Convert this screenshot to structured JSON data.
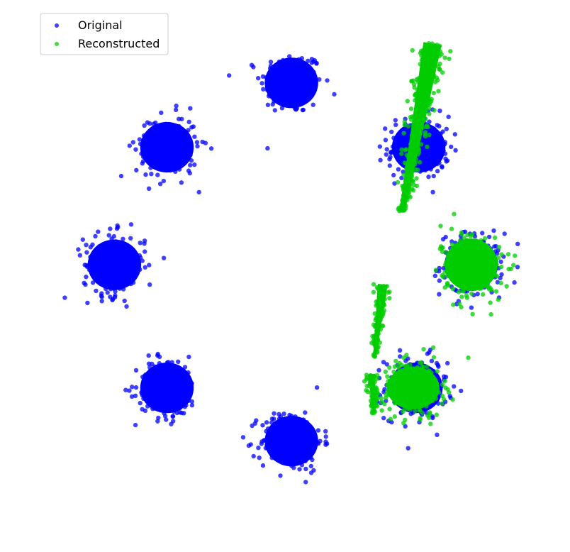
{
  "chart_data": {
    "type": "scatter",
    "title": "",
    "xlabel": "",
    "ylabel": "",
    "axes_visible": false,
    "grid": false,
    "xlim": [
      -4.6,
      4.6
    ],
    "ylim": [
      -4.6,
      4.4
    ],
    "legend": {
      "placement": "upper-left",
      "entries": [
        "Original",
        "Reconstructed"
      ]
    },
    "series": [
      {
        "name": "Original",
        "color": "#0000ff",
        "marker": "circle",
        "clusters": [
          {
            "center": [
              -0.05,
              3.3
            ],
            "spread": [
              0.45,
              0.45
            ],
            "extent": [
              0.62,
              0.55
            ],
            "n": 200
          },
          {
            "center": [
              2.25,
              2.15
            ],
            "spread": [
              0.45,
              0.45
            ],
            "extent": [
              0.62,
              0.55
            ],
            "n": 200
          },
          {
            "center": [
              3.2,
              0.05
            ],
            "spread": [
              0.45,
              0.45
            ],
            "extent": [
              0.62,
              0.55
            ],
            "n": 200
          },
          {
            "center": [
              2.2,
              -2.15
            ],
            "spread": [
              0.45,
              0.45
            ],
            "extent": [
              0.62,
              0.55
            ],
            "n": 200
          },
          {
            "center": [
              -0.05,
              -3.1
            ],
            "spread": [
              0.45,
              0.45
            ],
            "extent": [
              0.62,
              0.55
            ],
            "n": 200
          },
          {
            "center": [
              -2.3,
              -2.15
            ],
            "spread": [
              0.45,
              0.45
            ],
            "extent": [
              0.62,
              0.55
            ],
            "n": 200
          },
          {
            "center": [
              -3.25,
              0.05
            ],
            "spread": [
              0.45,
              0.45
            ],
            "extent": [
              0.62,
              0.55
            ],
            "n": 200
          },
          {
            "center": [
              -2.3,
              2.15
            ],
            "spread": [
              0.45,
              0.45
            ],
            "extent": [
              0.62,
              0.55
            ],
            "n": 200
          }
        ]
      },
      {
        "name": "Reconstructed",
        "color": "#00cc00",
        "marker": "circle",
        "shapes": [
          {
            "kind": "streak",
            "from": [
              1.95,
              1.0
            ],
            "to": [
              2.5,
              4.0
            ],
            "width": 0.3,
            "n": 320
          },
          {
            "kind": "blob",
            "center": [
              3.2,
              0.05
            ],
            "spread": [
              0.5,
              0.55
            ],
            "skew": 0.6,
            "n": 260
          },
          {
            "kind": "blob",
            "center": [
              2.15,
              -2.15
            ],
            "spread": [
              0.5,
              0.45
            ],
            "skew": 0.0,
            "n": 260
          },
          {
            "kind": "streak",
            "from": [
              1.45,
              -1.6
            ],
            "to": [
              1.6,
              -0.3
            ],
            "width": 0.16,
            "n": 110
          },
          {
            "kind": "streak",
            "from": [
              1.45,
              -2.6
            ],
            "to": [
              1.4,
              -1.9
            ],
            "width": 0.12,
            "n": 70
          }
        ]
      }
    ]
  }
}
